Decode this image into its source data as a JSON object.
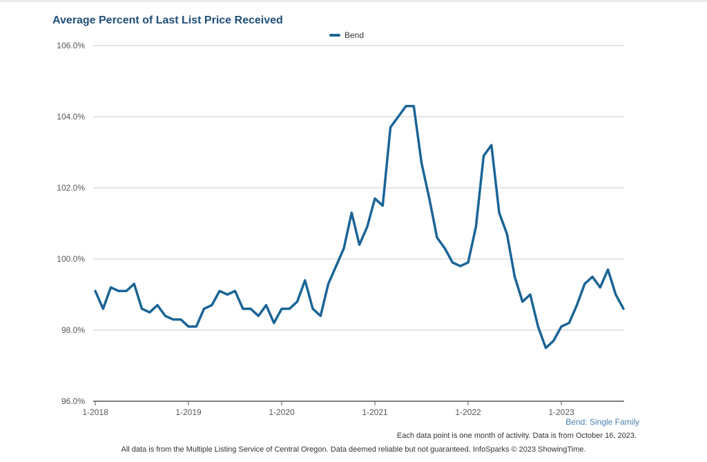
{
  "chart_data": {
    "type": "line",
    "title": "Average Percent of Last List Price Received",
    "ylim": [
      96.0,
      106.0
    ],
    "yticks": [
      "96.0%",
      "98.0%",
      "100.0%",
      "102.0%",
      "104.0%",
      "106.0%"
    ],
    "ytick_values": [
      96,
      98,
      100,
      102,
      104,
      106
    ],
    "xticks": [
      "1-2018",
      "1-2019",
      "1-2020",
      "1-2021",
      "1-2022",
      "1-2023"
    ],
    "x_start": "1-2018",
    "x_months": 69,
    "series": [
      {
        "name": "Bend",
        "color": "#1a6496",
        "values": [
          99.1,
          98.6,
          99.2,
          99.1,
          99.1,
          99.3,
          98.6,
          98.5,
          98.7,
          98.4,
          98.3,
          98.3,
          98.1,
          98.1,
          98.6,
          98.7,
          99.1,
          99.0,
          99.1,
          98.6,
          98.6,
          98.4,
          98.7,
          98.2,
          98.6,
          98.6,
          98.8,
          99.4,
          98.6,
          98.4,
          99.3,
          99.8,
          100.3,
          101.3,
          100.4,
          100.9,
          101.7,
          101.5,
          103.7,
          104.0,
          104.3,
          104.3,
          102.7,
          101.7,
          100.6,
          100.3,
          99.9,
          99.8,
          99.9,
          100.9,
          102.9,
          103.2,
          101.3,
          100.7,
          99.5,
          98.8,
          99.0,
          98.1,
          97.5,
          97.7,
          98.1,
          98.2,
          98.7,
          99.3,
          99.5,
          99.2,
          99.7,
          99.0,
          98.6
        ]
      }
    ],
    "legend": "top-center"
  },
  "header": {
    "title": "Average Percent of Last List Price Received"
  },
  "legend": {
    "label": "Bend"
  },
  "series_label": "Bend: Single Family",
  "note": "Each data point is one month of activity. Data is from October 16, 2023.",
  "footer": "All data is from the Multiple Listing Service of Central Oregon. Data deemed reliable but not guaranteed. InfoSparks © 2023 ShowingTime."
}
